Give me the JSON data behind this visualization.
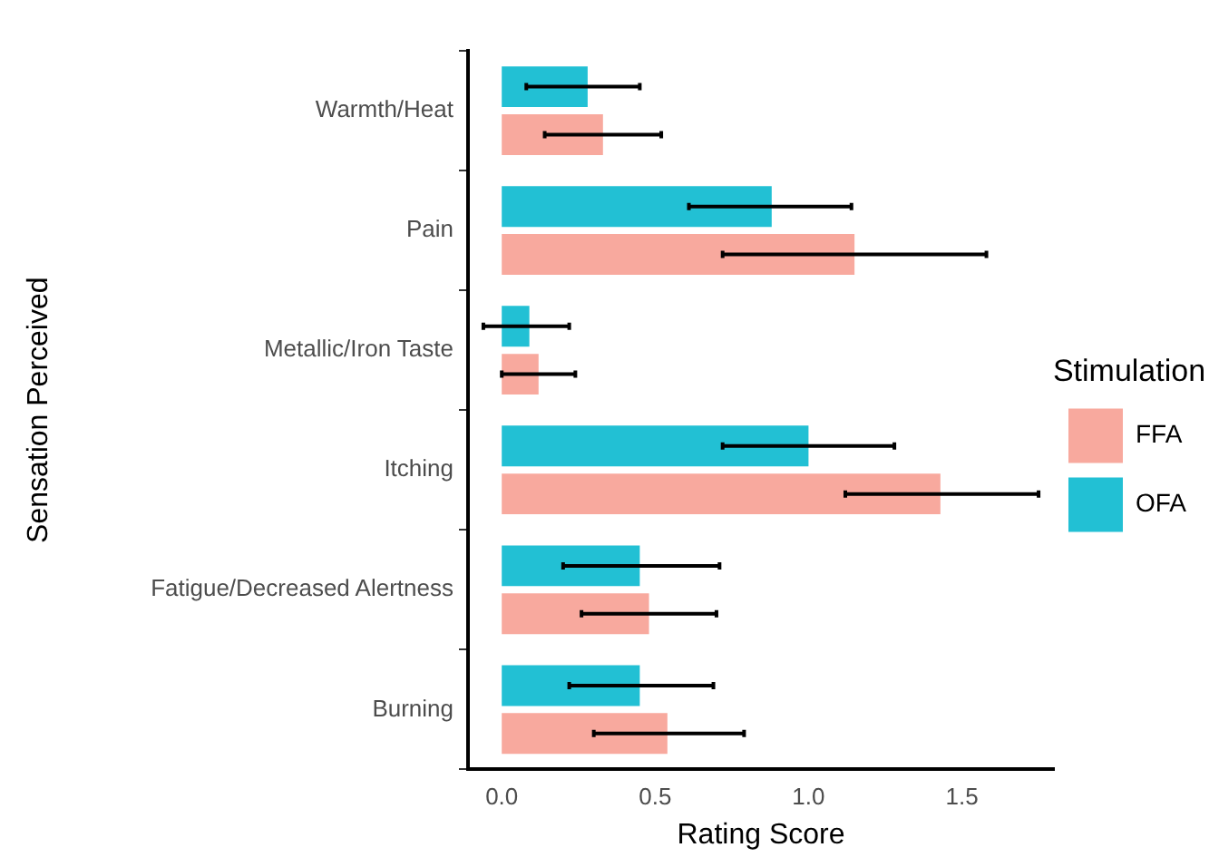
{
  "chart_data": {
    "type": "bar",
    "orientation": "horizontal",
    "xlabel": "Rating Score",
    "ylabel": "Sensation Perceived",
    "legend_title": "Stimulation",
    "legend": "right",
    "grid": false,
    "categories": [
      "Warmth/Heat",
      "Pain",
      "Metallic/Iron Taste",
      "Itching",
      "Fatigue/Decreased Alertness",
      "Burning"
    ],
    "xlim": [
      -0.11,
      1.8
    ],
    "xticks": [
      {
        "value": 0,
        "label": "0.0"
      },
      {
        "value": 0.5,
        "label": "0.5"
      },
      {
        "value": 1,
        "label": "1.0"
      },
      {
        "value": 1.5,
        "label": "1.5"
      }
    ],
    "series": [
      {
        "name": "FFA",
        "color": "#f8a99e",
        "values": [
          0.33,
          1.15,
          0.12,
          1.43,
          0.48,
          0.54
        ],
        "errors": [
          [
            0.14,
            0.52
          ],
          [
            0.72,
            1.58
          ],
          [
            0,
            0.24
          ],
          [
            1.12,
            1.75
          ],
          [
            0.26,
            0.7
          ],
          [
            0.3,
            0.79
          ]
        ]
      },
      {
        "name": "OFA",
        "color": "#22c0d4",
        "values": [
          0.28,
          0.88,
          0.09,
          1.0,
          0.45,
          0.45
        ],
        "errors": [
          [
            0.08,
            0.45
          ],
          [
            0.61,
            1.14
          ],
          [
            -0.06,
            0.22
          ],
          [
            0.72,
            1.28
          ],
          [
            0.2,
            0.71
          ],
          [
            0.22,
            0.69
          ]
        ]
      }
    ]
  }
}
